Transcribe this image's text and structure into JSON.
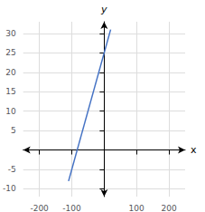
{
  "chart_data": {
    "type": "line",
    "x": [
      -110,
      20
    ],
    "values": [
      -8,
      31
    ],
    "color": "#4472c4",
    "xlabel": "x",
    "ylabel": "y",
    "xlim": [
      -250,
      250
    ],
    "ylim": [
      -12,
      33
    ],
    "xticks": [
      -200,
      -100,
      {
        "value": 0,
        "label": ""
      },
      100,
      200
    ],
    "yticks": [
      -10,
      -5,
      {
        "value": 0,
        "label": ""
      },
      5,
      10,
      15,
      20,
      25,
      30
    ],
    "grid": true
  }
}
